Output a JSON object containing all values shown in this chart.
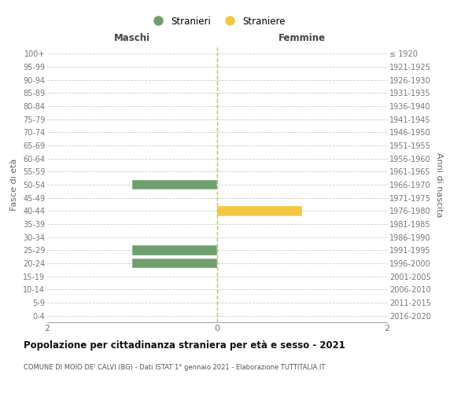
{
  "age_groups": [
    "0-4",
    "5-9",
    "10-14",
    "15-19",
    "20-24",
    "25-29",
    "30-34",
    "35-39",
    "40-44",
    "45-49",
    "50-54",
    "55-59",
    "60-64",
    "65-69",
    "70-74",
    "75-79",
    "80-84",
    "85-89",
    "90-94",
    "95-99",
    "100+"
  ],
  "birth_years": [
    "2016-2020",
    "2011-2015",
    "2006-2010",
    "2001-2005",
    "1996-2000",
    "1991-1995",
    "1986-1990",
    "1981-1985",
    "1976-1980",
    "1971-1975",
    "1966-1970",
    "1961-1965",
    "1956-1960",
    "1951-1955",
    "1946-1950",
    "1941-1945",
    "1936-1940",
    "1931-1935",
    "1926-1930",
    "1921-1925",
    "≤ 1920"
  ],
  "males": [
    0,
    0,
    0,
    0,
    1,
    1,
    0,
    0,
    0,
    0,
    1,
    0,
    0,
    0,
    0,
    0,
    0,
    0,
    0,
    0,
    0
  ],
  "females": [
    0,
    0,
    0,
    0,
    0,
    0,
    0,
    0,
    1,
    0,
    0,
    0,
    0,
    0,
    0,
    0,
    0,
    0,
    0,
    0,
    0
  ],
  "male_color": "#6f9e6f",
  "female_color": "#f5c842",
  "xlim": [
    -2,
    2
  ],
  "xticks": [
    -2,
    0,
    2
  ],
  "xticklabels": [
    "2",
    "0",
    "2"
  ],
  "title": "Popolazione per cittadinanza straniera per età e sesso - 2021",
  "subtitle": "COMUNE DI MOIO DE' CALVI (BG) - Dati ISTAT 1° gennaio 2021 - Elaborazione TUTTITALIA.IT",
  "left_label": "Maschi",
  "right_label": "Femmine",
  "ylabel_left": "Fasce di età",
  "ylabel_right": "Anni di nascita",
  "legend_male": "Stranieri",
  "legend_female": "Straniere",
  "background_color": "#ffffff",
  "grid_color": "#cccccc",
  "bar_height": 0.75
}
